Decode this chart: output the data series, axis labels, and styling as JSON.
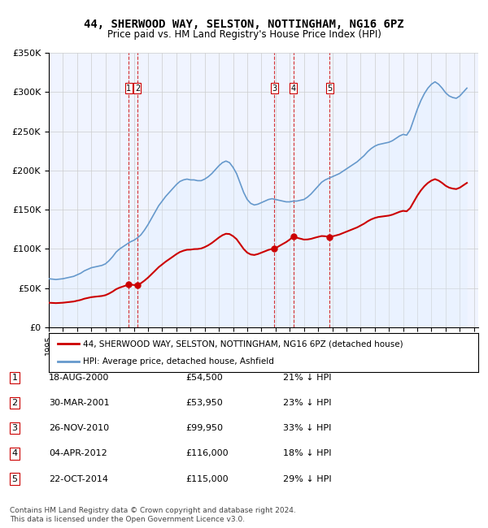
{
  "title": "44, SHERWOOD WAY, SELSTON, NOTTINGHAM, NG16 6PZ",
  "subtitle": "Price paid vs. HM Land Registry's House Price Index (HPI)",
  "legend_label_red": "44, SHERWOOD WAY, SELSTON, NOTTINGHAM, NG16 6PZ (detached house)",
  "legend_label_blue": "HPI: Average price, detached house, Ashfield",
  "footer": "Contains HM Land Registry data © Crown copyright and database right 2024.\nThis data is licensed under the Open Government Licence v3.0.",
  "transactions": [
    {
      "num": 1,
      "date": "18-AUG-2000",
      "price": "£54,500",
      "pct": "21% ↓ HPI",
      "year": 2000.63
    },
    {
      "num": 2,
      "date": "30-MAR-2001",
      "price": "£53,950",
      "pct": "23% ↓ HPI",
      "year": 2001.25
    },
    {
      "num": 3,
      "date": "26-NOV-2010",
      "price": "£99,950",
      "pct": "33% ↓ HPI",
      "year": 2010.9
    },
    {
      "num": 4,
      "date": "04-APR-2012",
      "price": "£116,000",
      "pct": "18% ↓ HPI",
      "year": 2012.26
    },
    {
      "num": 5,
      "date": "22-OCT-2014",
      "price": "£115,000",
      "pct": "29% ↓ HPI",
      "year": 2014.81
    }
  ],
  "transaction_prices": [
    54500,
    53950,
    99950,
    116000,
    115000
  ],
  "ylim": [
    0,
    350000
  ],
  "yticks": [
    0,
    50000,
    100000,
    150000,
    200000,
    250000,
    300000,
    350000
  ],
  "ytick_labels": [
    "£0",
    "£50K",
    "£100K",
    "£150K",
    "£200K",
    "£250K",
    "£300K",
    "£350K"
  ],
  "red_color": "#cc0000",
  "blue_color": "#6699cc",
  "blue_fill": "#ddeeff",
  "background_color": "#ffffff",
  "plot_bg_color": "#f0f4ff",
  "grid_color": "#cccccc",
  "hpi_data": {
    "years": [
      1995.0,
      1995.25,
      1995.5,
      1995.75,
      1996.0,
      1996.25,
      1996.5,
      1996.75,
      1997.0,
      1997.25,
      1997.5,
      1997.75,
      1998.0,
      1998.25,
      1998.5,
      1998.75,
      1999.0,
      1999.25,
      1999.5,
      1999.75,
      2000.0,
      2000.25,
      2000.5,
      2000.75,
      2001.0,
      2001.25,
      2001.5,
      2001.75,
      2002.0,
      2002.25,
      2002.5,
      2002.75,
      2003.0,
      2003.25,
      2003.5,
      2003.75,
      2004.0,
      2004.25,
      2004.5,
      2004.75,
      2005.0,
      2005.25,
      2005.5,
      2005.75,
      2006.0,
      2006.25,
      2006.5,
      2006.75,
      2007.0,
      2007.25,
      2007.5,
      2007.75,
      2008.0,
      2008.25,
      2008.5,
      2008.75,
      2009.0,
      2009.25,
      2009.5,
      2009.75,
      2010.0,
      2010.25,
      2010.5,
      2010.75,
      2011.0,
      2011.25,
      2011.5,
      2011.75,
      2012.0,
      2012.25,
      2012.5,
      2012.75,
      2013.0,
      2013.25,
      2013.5,
      2013.75,
      2014.0,
      2014.25,
      2014.5,
      2014.75,
      2015.0,
      2015.25,
      2015.5,
      2015.75,
      2016.0,
      2016.25,
      2016.5,
      2016.75,
      2017.0,
      2017.25,
      2017.5,
      2017.75,
      2018.0,
      2018.25,
      2018.5,
      2018.75,
      2019.0,
      2019.25,
      2019.5,
      2019.75,
      2020.0,
      2020.25,
      2020.5,
      2020.75,
      2021.0,
      2021.25,
      2021.5,
      2021.75,
      2022.0,
      2022.25,
      2022.5,
      2022.75,
      2023.0,
      2023.25,
      2023.5,
      2023.75,
      2024.0,
      2024.25,
      2024.5
    ],
    "values": [
      62000,
      61500,
      61000,
      61500,
      62000,
      63000,
      64000,
      65000,
      67000,
      69000,
      72000,
      74000,
      76000,
      77000,
      78000,
      79000,
      81000,
      85000,
      90000,
      96000,
      100000,
      103000,
      106000,
      109000,
      111000,
      114000,
      118000,
      124000,
      131000,
      139000,
      147000,
      155000,
      161000,
      167000,
      172000,
      177000,
      182000,
      186000,
      188000,
      189000,
      188000,
      188000,
      187000,
      187000,
      189000,
      192000,
      196000,
      201000,
      206000,
      210000,
      212000,
      210000,
      204000,
      196000,
      184000,
      172000,
      163000,
      158000,
      156000,
      157000,
      159000,
      161000,
      163000,
      164000,
      163000,
      162000,
      161000,
      160000,
      160000,
      161000,
      161000,
      162000,
      163000,
      166000,
      170000,
      175000,
      180000,
      185000,
      188000,
      190000,
      192000,
      194000,
      196000,
      199000,
      202000,
      205000,
      208000,
      211000,
      215000,
      219000,
      224000,
      228000,
      231000,
      233000,
      234000,
      235000,
      236000,
      238000,
      241000,
      244000,
      246000,
      245000,
      252000,
      265000,
      278000,
      289000,
      298000,
      305000,
      310000,
      313000,
      310000,
      305000,
      299000,
      295000,
      293000,
      292000,
      295000,
      300000,
      305000
    ]
  },
  "red_data": {
    "years": [
      1995.0,
      2000.63,
      2001.25,
      2010.9,
      2012.26,
      2014.81,
      2024.5
    ],
    "values": [
      40000,
      54500,
      53950,
      99950,
      116000,
      115000,
      185000
    ]
  }
}
